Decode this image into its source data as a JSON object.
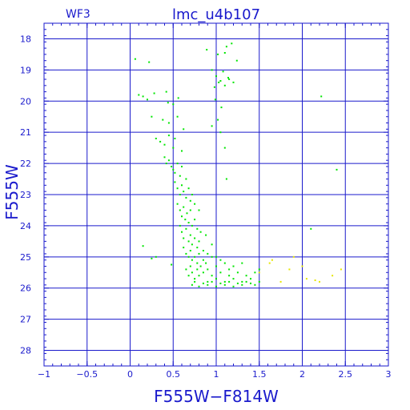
{
  "chart_data": {
    "type": "scatter",
    "title": "lmc_u4b107",
    "subtitle": "WF3",
    "xlabel": "F555W−F814W",
    "ylabel": "F555W",
    "xlim": [
      -1,
      3
    ],
    "ylim": [
      28.5,
      17.5
    ],
    "y_inverted": true,
    "grid": true,
    "x_ticks": [
      -1,
      -0.5,
      0,
      0.5,
      1,
      1.5,
      2,
      2.5,
      3
    ],
    "x_tick_labels": [
      "−1",
      "−0.5",
      "0",
      "0.5",
      "1",
      "1.5",
      "2",
      "2.5",
      "3"
    ],
    "y_ticks": [
      18,
      19,
      20,
      21,
      22,
      23,
      24,
      25,
      26,
      27,
      28
    ],
    "y_tick_labels": [
      "18",
      "19",
      "20",
      "21",
      "22",
      "23",
      "24",
      "25",
      "26",
      "27",
      "28"
    ],
    "colors": {
      "axes": "#1a1acc",
      "grid": "#1a1acc",
      "points_main": "#00e600",
      "points_faint": "#e6e600"
    },
    "series": [
      {
        "color": "#00e600",
        "x": [
          0.06,
          0.22,
          0.89,
          1.02,
          1.1,
          1.12,
          1.18,
          1.24,
          0.95,
          1.0,
          1.05,
          1.08,
          1.14,
          0.98,
          1.03,
          1.1,
          1.15,
          1.2,
          0.1,
          0.15,
          0.2,
          0.28,
          0.42,
          0.44,
          0.5,
          0.56,
          0.99,
          1.06,
          2.22,
          0.25,
          0.38,
          0.45,
          0.55,
          0.62,
          0.95,
          1.02,
          0.3,
          0.35,
          0.4,
          0.45,
          0.5,
          0.52,
          0.6,
          1.05,
          1.1,
          0.4,
          0.42,
          0.45,
          0.48,
          0.5,
          0.52,
          0.55,
          0.58,
          0.6,
          0.65,
          1.12,
          2.4,
          0.52,
          0.55,
          0.58,
          0.6,
          0.62,
          0.65,
          0.68,
          0.7,
          0.72,
          0.75,
          0.8,
          0.55,
          0.58,
          0.6,
          0.62,
          0.64,
          0.66,
          0.68,
          0.7,
          0.72,
          0.75,
          0.78,
          0.82,
          0.88,
          0.58,
          0.6,
          0.62,
          0.65,
          0.68,
          0.7,
          0.72,
          0.75,
          0.78,
          0.8,
          0.85,
          0.9,
          0.95,
          1.0,
          2.1,
          0.15,
          0.62,
          0.65,
          0.68,
          0.7,
          0.72,
          0.75,
          0.78,
          0.8,
          0.82,
          0.85,
          0.88,
          0.9,
          0.95,
          1.0,
          1.05,
          1.1,
          1.15,
          1.2,
          1.3,
          0.25,
          0.3,
          0.48,
          0.65,
          0.68,
          0.7,
          0.72,
          0.75,
          0.78,
          0.8,
          0.85,
          0.9,
          0.95,
          1.0,
          1.05,
          1.1,
          1.15,
          1.2,
          1.25,
          1.3,
          1.35,
          1.4,
          1.45,
          1.5,
          0.72,
          0.75,
          0.8,
          0.85,
          0.9,
          0.95,
          1.0,
          1.05,
          1.1,
          1.15,
          1.2,
          1.25,
          1.3,
          1.35,
          1.4,
          1.45,
          1.5
        ],
        "y": [
          18.65,
          18.75,
          18.35,
          18.5,
          18.45,
          18.25,
          18.15,
          18.7,
          19.0,
          19.2,
          19.35,
          19.05,
          19.25,
          19.55,
          19.4,
          19.5,
          19.3,
          19.4,
          19.8,
          19.85,
          19.95,
          19.75,
          19.7,
          20.05,
          20.1,
          19.9,
          19.95,
          20.2,
          19.85,
          20.5,
          20.6,
          20.7,
          20.5,
          20.9,
          20.8,
          20.6,
          21.2,
          21.3,
          21.4,
          21.1,
          21.5,
          21.2,
          21.6,
          21.0,
          21.5,
          21.8,
          22.0,
          21.9,
          22.1,
          22.2,
          22.3,
          22.0,
          22.4,
          22.1,
          22.5,
          22.5,
          22.2,
          22.6,
          22.8,
          23.0,
          22.7,
          22.9,
          23.1,
          22.8,
          23.2,
          23.0,
          23.3,
          23.5,
          23.3,
          23.5,
          23.7,
          23.4,
          23.8,
          23.6,
          23.9,
          23.5,
          24.0,
          23.8,
          24.1,
          24.2,
          24.3,
          24.0,
          24.2,
          24.4,
          24.1,
          24.5,
          24.3,
          24.6,
          24.4,
          24.7,
          24.5,
          24.8,
          24.9,
          24.6,
          25.0,
          24.1,
          24.65,
          24.7,
          24.9,
          25.0,
          24.8,
          25.1,
          25.0,
          25.2,
          24.9,
          25.3,
          25.1,
          25.2,
          25.4,
          25.0,
          25.3,
          25.1,
          25.2,
          25.4,
          25.3,
          25.2,
          25.05,
          25.0,
          25.25,
          25.4,
          25.6,
          25.3,
          25.5,
          25.7,
          25.4,
          25.6,
          25.5,
          25.8,
          25.6,
          25.7,
          25.5,
          25.8,
          25.6,
          25.7,
          25.5,
          25.8,
          25.6,
          25.7,
          25.5,
          25.4,
          25.9,
          25.8,
          25.95,
          25.85,
          25.9,
          25.8,
          25.95,
          25.85,
          25.9,
          25.8,
          25.95,
          25.85,
          25.9,
          25.8,
          25.85,
          25.9,
          25.8
        ]
      },
      {
        "color": "#e6e600",
        "x": [
          1.5,
          1.62,
          1.75,
          1.85,
          2.0,
          2.05,
          2.2,
          2.35,
          2.45,
          1.65,
          1.9,
          2.15
        ],
        "y": [
          25.5,
          25.2,
          25.8,
          25.4,
          25.3,
          25.7,
          25.8,
          25.6,
          25.4,
          25.1,
          25.0,
          25.75
        ]
      }
    ]
  }
}
